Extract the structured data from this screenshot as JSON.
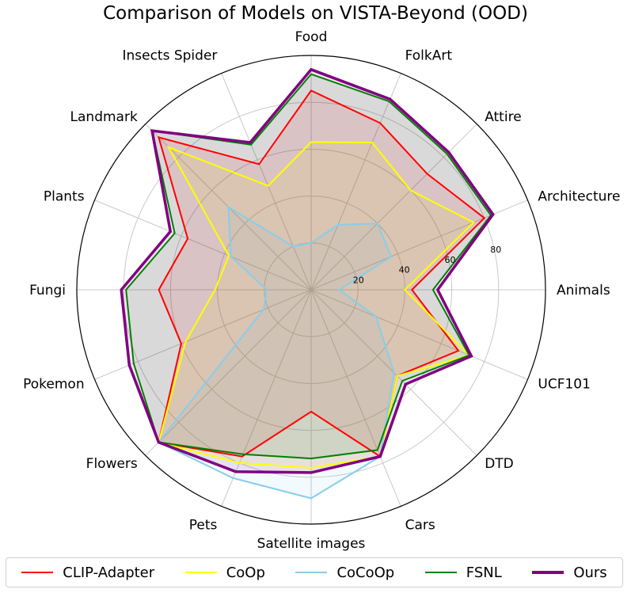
{
  "chart_data": {
    "type": "radar",
    "title": "Comparison of Models on VISTA-Beyond (OOD)",
    "categories": [
      "Food",
      "FolkArt",
      "Attire",
      "Architecture",
      "Animals",
      "UCF101",
      "DTD",
      "Cars",
      "Satellite images",
      "Pets",
      "Flowers",
      "Pokemon",
      "Fungi",
      "Plants",
      "Landmark",
      "Insects Spider"
    ],
    "radial_ticks": [
      20,
      40,
      60,
      80
    ],
    "rlim": [
      0,
      100
    ],
    "grid": true,
    "legend_position": "bottom",
    "series": [
      {
        "name": "CLIP-Adapter",
        "color": "#ff0000",
        "values": [
          85,
          77,
          70,
          80,
          43,
          68,
          52,
          77,
          52,
          77,
          92,
          60,
          65,
          57,
          92,
          58
        ]
      },
      {
        "name": "CoOp",
        "color": "#ffff00",
        "values": [
          63,
          68,
          60,
          75,
          40,
          73,
          52,
          77,
          76,
          80,
          92,
          58,
          41,
          38,
          86,
          48
        ]
      },
      {
        "name": "CoCoOp",
        "color": "#87ceeb",
        "values": [
          20,
          30,
          40,
          37,
          12,
          30,
          50,
          77,
          89,
          87,
          92,
          22,
          19,
          37,
          50,
          20
        ]
      },
      {
        "name": "FSNL",
        "color": "#008000",
        "values": [
          92,
          87,
          82,
          83,
          52,
          73,
          55,
          74,
          72,
          76,
          92,
          82,
          79,
          63,
          96,
          67
        ]
      },
      {
        "name": "Ours",
        "color": "#800080",
        "values": [
          94,
          88,
          83,
          84,
          54,
          74,
          57,
          77,
          78,
          84,
          92,
          84,
          81,
          65,
          96,
          68
        ]
      }
    ]
  }
}
